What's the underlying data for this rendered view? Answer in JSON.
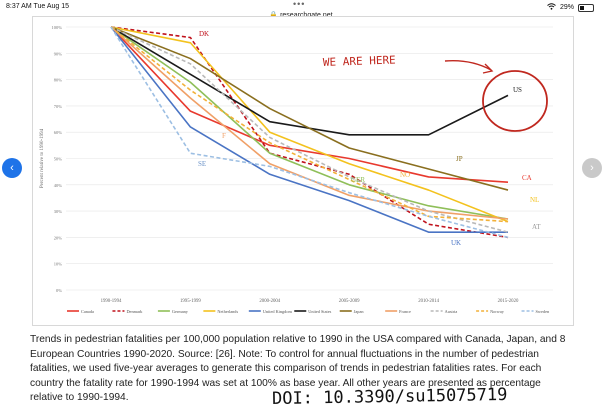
{
  "browser": {
    "time": "8:37 AM   Tue Aug 15",
    "url": "researchgate.net",
    "battery": "29%",
    "dots": "•••"
  },
  "nav": {
    "prev_glyph": "‹",
    "next_glyph": "›"
  },
  "chart_data": {
    "type": "line",
    "ylabel": "Percent relative to 1990-1994",
    "ylim": [
      0,
      100
    ],
    "yticks": [
      "0%",
      "10%",
      "20%",
      "30%",
      "40%",
      "50%",
      "60%",
      "70%",
      "80%",
      "90%",
      "100%"
    ],
    "categories": [
      "1990-1994",
      "1995-1999",
      "2000-2004",
      "2005-2009",
      "2010-2014",
      "2015-2020"
    ],
    "series": [
      {
        "name": "Canada",
        "color": "#e8392e",
        "dash": "solid",
        "values": [
          100,
          68,
          55,
          50,
          43,
          41
        ]
      },
      {
        "name": "Denmark",
        "color": "#c0121c",
        "dash": "dashed",
        "values": [
          100,
          96,
          52,
          44,
          25,
          20
        ]
      },
      {
        "name": "Germany",
        "color": "#8fbf59",
        "dash": "solid",
        "values": [
          100,
          79,
          52,
          40,
          32,
          27
        ]
      },
      {
        "name": "Netherlands",
        "color": "#f3c21e",
        "dash": "solid",
        "values": [
          100,
          94,
          60,
          48,
          38,
          26
        ]
      },
      {
        "name": "United Kingdom",
        "color": "#4a74c4",
        "dash": "solid",
        "values": [
          100,
          62,
          44,
          34,
          22,
          22
        ]
      },
      {
        "name": "United States",
        "color": "#1a1a1a",
        "dash": "solid",
        "values": [
          100,
          82,
          64,
          59,
          59,
          74
        ]
      },
      {
        "name": "Japan",
        "color": "#8a6f1f",
        "dash": "solid",
        "values": [
          100,
          88,
          69,
          54,
          46,
          38
        ]
      },
      {
        "name": "France",
        "color": "#f0a067",
        "dash": "solid",
        "values": [
          100,
          73,
          48,
          36,
          30,
          27
        ]
      },
      {
        "name": "Austria",
        "color": "#b9b9b9",
        "dash": "dashed",
        "values": [
          100,
          86,
          58,
          43,
          30,
          22
        ]
      },
      {
        "name": "Norway",
        "color": "#f2b13a",
        "dash": "dashed",
        "values": [
          100,
          76,
          56,
          42,
          28,
          26
        ]
      },
      {
        "name": "Sweden",
        "color": "#9dbfe3",
        "dash": "dashed",
        "values": [
          100,
          52,
          47,
          37,
          28,
          20
        ]
      }
    ],
    "labels": [
      {
        "text": "DK",
        "color": "#c0121c"
      },
      {
        "text": "F",
        "color": "#f0a067"
      },
      {
        "text": "SE",
        "color": "#6b93c8"
      },
      {
        "text": "GER",
        "color": "#8fbf59"
      },
      {
        "text": "NO",
        "color": "#f2b13a"
      },
      {
        "text": "JP",
        "color": "#8a6f1f"
      },
      {
        "text": "CA",
        "color": "#e8392e"
      },
      {
        "text": "NL",
        "color": "#f3c21e"
      },
      {
        "text": "AT",
        "color": "#9a9a9a"
      },
      {
        "text": "UK",
        "color": "#4a74c4"
      },
      {
        "text": "US",
        "color": "#1a1a1a"
      }
    ],
    "annotation": {
      "text": "WE ARE HERE",
      "color": "#c0281f"
    },
    "legend_position": "bottom"
  },
  "caption": "Trends in pedestrian fatalities per 100,000 population relative to 1990 in the USA compared with Canada, Japan, and 8 European Countries 1990-2020. Source: [26]. Note: To control for annual fluctuations in the number of pedestrian fatalities, we used five-year averages to generate this comparison of trends in pedestrian fatalities rates. For each country the fatality rate for 1990-1994 was set at 100% as base year. All other years are presented as percentage relative to 1990-1994.",
  "doi": "DOI: 10.3390/su15075719"
}
